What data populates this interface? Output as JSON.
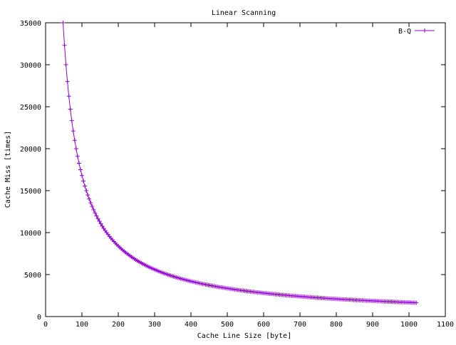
{
  "chart_data": {
    "type": "line",
    "title": "Linear Scanning",
    "xlabel": "Cache Line Size [byte]",
    "ylabel": "Cache Miss [times]",
    "xlim": [
      0,
      1100
    ],
    "ylim": [
      0,
      35000
    ],
    "xticks": [
      0,
      100,
      200,
      300,
      400,
      500,
      600,
      700,
      800,
      900,
      1000,
      1100
    ],
    "yticks": [
      0,
      5000,
      10000,
      15000,
      20000,
      25000,
      30000,
      35000
    ],
    "grid": false,
    "legend_position": "top-right",
    "series": [
      {
        "name": "B-Q",
        "color": "#9400d3",
        "marker": "plus",
        "x_start": 48,
        "x_end": 1020,
        "x_step": 4,
        "formula": "y = 1680000 / x",
        "points": [
          [
            48,
            35000
          ],
          [
            60,
            28000
          ],
          [
            80,
            21000
          ],
          [
            100,
            16800
          ],
          [
            120,
            14000
          ],
          [
            150,
            11200
          ],
          [
            200,
            8400
          ],
          [
            250,
            6720
          ],
          [
            300,
            5600
          ],
          [
            400,
            4200
          ],
          [
            500,
            3360
          ],
          [
            600,
            2800
          ],
          [
            700,
            2400
          ],
          [
            800,
            2100
          ],
          [
            900,
            1867
          ],
          [
            1020,
            1647
          ]
        ]
      }
    ]
  }
}
